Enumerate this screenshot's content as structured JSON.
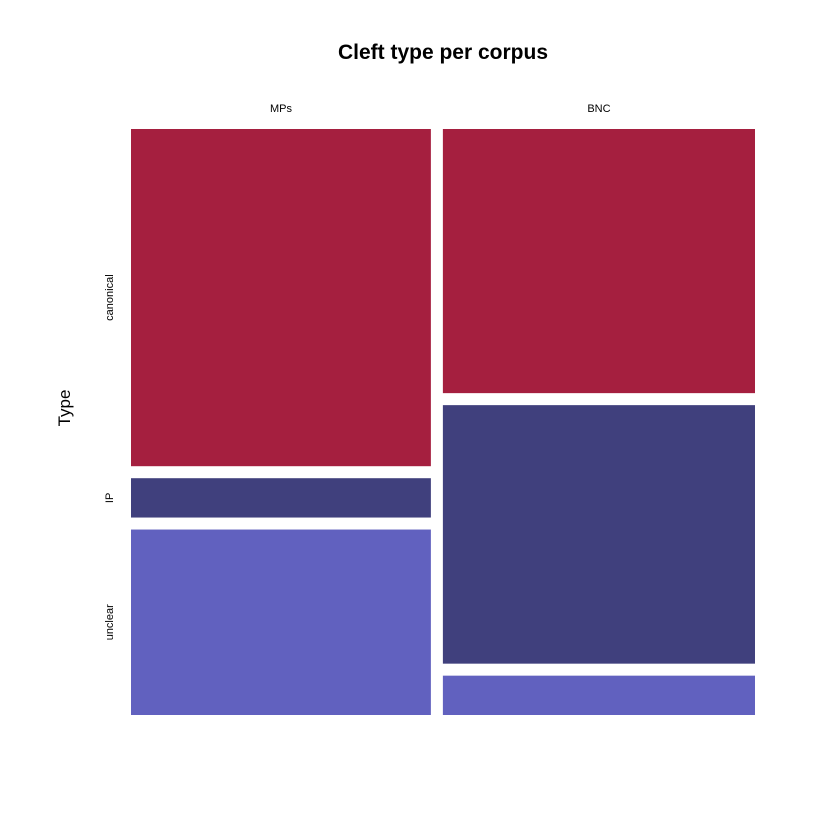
{
  "chart_data": {
    "type": "mosaic",
    "title": "Cleft type per corpus",
    "ylabel": "Type",
    "xlabel": "",
    "columns": [
      "MPs",
      "BNC"
    ],
    "column_proportions": [
      0.49,
      0.51
    ],
    "rows": [
      "canonical",
      "IP",
      "unclear"
    ],
    "series": [
      {
        "name": "canonical",
        "color": "#a51f3f",
        "values": [
          0.6,
          0.47
        ]
      },
      {
        "name": "IP",
        "color": "#40407d",
        "values": [
          0.07,
          0.46
        ]
      },
      {
        "name": "unclear",
        "color": "#6161bf",
        "values": [
          0.33,
          0.07
        ]
      }
    ]
  }
}
